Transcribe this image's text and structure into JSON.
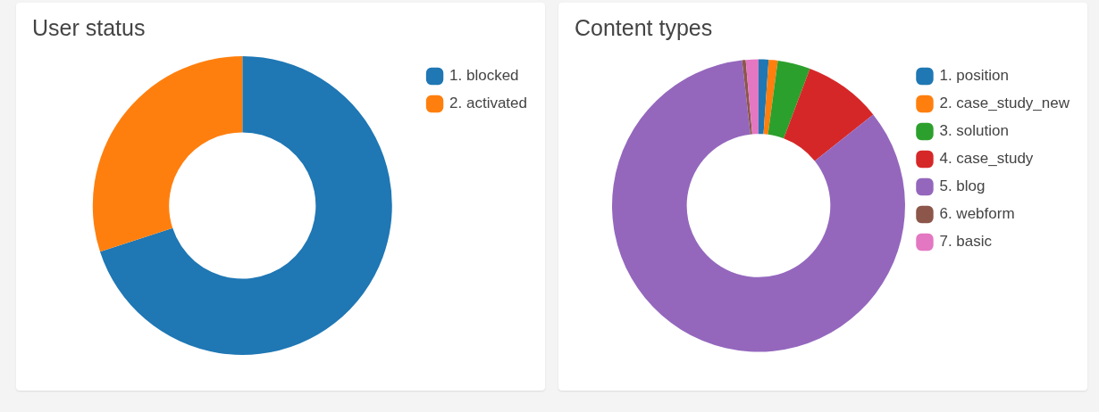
{
  "chart_data": [
    {
      "type": "donut",
      "title": "User status",
      "categories": [
        "1. blocked",
        "2. activated"
      ],
      "values": [
        70,
        30
      ],
      "colors": [
        "#1f77b4",
        "#ff7f0e"
      ],
      "legend": "top right"
    },
    {
      "type": "donut",
      "title": "Content types",
      "categories": [
        "1. position",
        "2. case_study_new",
        "3. solution",
        "4. case_study",
        "5. blog",
        "6. webform",
        "7. basic"
      ],
      "values": [
        1.1,
        1.0,
        3.6,
        8.6,
        83.9,
        0.4,
        1.4
      ],
      "colors": [
        "#1f77b4",
        "#ff7f0e",
        "#2ca02c",
        "#d62728",
        "#9467bd",
        "#8c564b",
        "#e377c2"
      ],
      "legend": "top right"
    }
  ]
}
